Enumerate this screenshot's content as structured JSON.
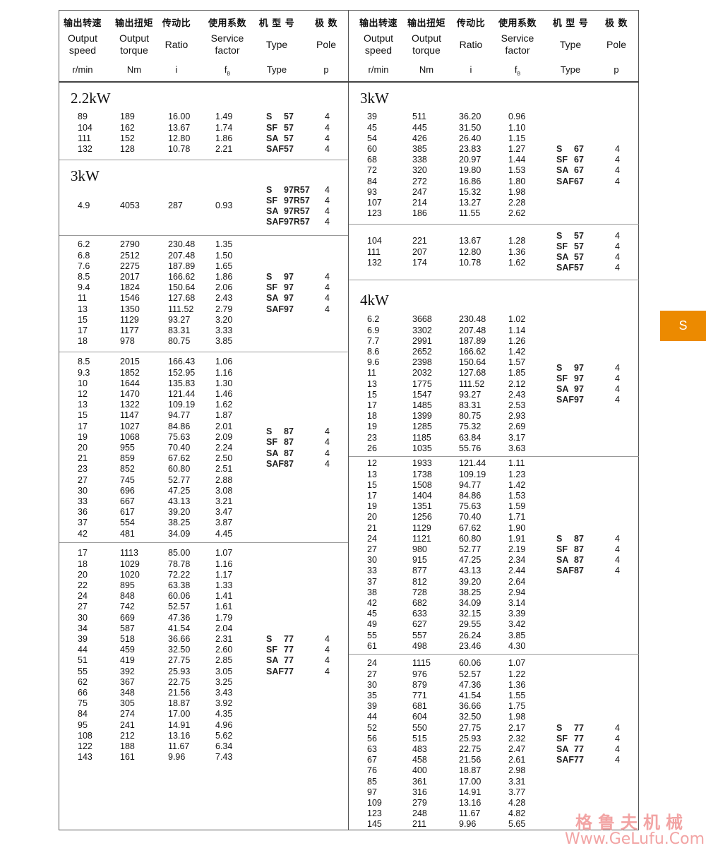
{
  "header": {
    "columns": [
      {
        "zh": "输出转速",
        "en": "Output speed",
        "en1": "Output",
        "en2": "speed",
        "unit": "r/min"
      },
      {
        "zh": "输出扭矩",
        "en": "Output torque",
        "en1": "Output",
        "en2": "torque",
        "unit": "Nm"
      },
      {
        "zh": "传动比",
        "en": "Ratio",
        "unit": "i"
      },
      {
        "zh": "使用系数",
        "en": "Service factor",
        "en1": "Service",
        "en2": "factor",
        "unit": "f",
        "unit_sub": "B"
      },
      {
        "zh": "机 型 号",
        "en": "Type",
        "unit": "Type"
      },
      {
        "zh": "极 数",
        "en": "Pole",
        "unit": "p"
      }
    ]
  },
  "left": [
    {
      "power": "2.2kW",
      "types": [
        [
          "S",
          "57"
        ],
        [
          "SF",
          "57"
        ],
        [
          "SA",
          "57"
        ],
        [
          "SAF",
          "57"
        ]
      ],
      "pole": "4",
      "rows": [
        [
          "89",
          "189",
          "16.00",
          "1.49"
        ],
        [
          "104",
          "162",
          "13.67",
          "1.74"
        ],
        [
          "111",
          "152",
          "12.80",
          "1.86"
        ],
        [
          "132",
          "128",
          "10.78",
          "2.21"
        ]
      ]
    },
    {
      "power": "3kW",
      "types": [
        [
          "S",
          "97R57"
        ],
        [
          "SF",
          "97R57"
        ],
        [
          "SA",
          "97R57"
        ],
        [
          "SAF",
          "97R57"
        ]
      ],
      "pole": "4",
      "rows": [
        [
          "4.9",
          "4053",
          "287",
          "0.93"
        ]
      ]
    },
    {
      "types": [
        [
          "S",
          "97"
        ],
        [
          "SF",
          "97"
        ],
        [
          "SA",
          "97"
        ],
        [
          "SAF",
          "97"
        ]
      ],
      "pole": "4",
      "rows": [
        [
          "6.2",
          "2790",
          "230.48",
          "1.35"
        ],
        [
          "6.8",
          "2512",
          "207.48",
          "1.50"
        ],
        [
          "7.6",
          "2275",
          "187.89",
          "1.65"
        ],
        [
          "8.5",
          "2017",
          "166.62",
          "1.86"
        ],
        [
          "9.4",
          "1824",
          "150.64",
          "2.06"
        ],
        [
          "11",
          "1546",
          "127.68",
          "2.43"
        ],
        [
          "13",
          "1350",
          "111.52",
          "2.79"
        ],
        [
          "15",
          "1129",
          "93.27",
          "3.20"
        ],
        [
          "17",
          "1177",
          "83.31",
          "3.33"
        ],
        [
          "18",
          "978",
          "80.75",
          "3.85"
        ]
      ]
    },
    {
      "types": [
        [
          "S",
          "87"
        ],
        [
          "SF",
          "87"
        ],
        [
          "SA",
          "87"
        ],
        [
          "SAF",
          "87"
        ]
      ],
      "pole": "4",
      "rows": [
        [
          "8.5",
          "2015",
          "166.43",
          "1.06"
        ],
        [
          "9.3",
          "1852",
          "152.95",
          "1.16"
        ],
        [
          "10",
          "1644",
          "135.83",
          "1.30"
        ],
        [
          "12",
          "1470",
          "121.44",
          "1.46"
        ],
        [
          "13",
          "1322",
          "109.19",
          "1.62"
        ],
        [
          "15",
          "1147",
          "94.77",
          "1.87"
        ],
        [
          "17",
          "1027",
          "84.86",
          "2.01"
        ],
        [
          "19",
          "1068",
          "75.63",
          "2.09"
        ],
        [
          "20",
          "955",
          "70.40",
          "2.24"
        ],
        [
          "21",
          "859",
          "67.62",
          "2.50"
        ],
        [
          "23",
          "852",
          "60.80",
          "2.51"
        ],
        [
          "27",
          "745",
          "52.77",
          "2.88"
        ],
        [
          "30",
          "696",
          "47.25",
          "3.08"
        ],
        [
          "33",
          "667",
          "43.13",
          "3.21"
        ],
        [
          "36",
          "617",
          "39.20",
          "3.47"
        ],
        [
          "37",
          "554",
          "38.25",
          "3.87"
        ],
        [
          "42",
          "481",
          "34.09",
          "4.45"
        ]
      ]
    },
    {
      "types": [
        [
          "S",
          "77"
        ],
        [
          "SF",
          "77"
        ],
        [
          "SA",
          "77"
        ],
        [
          "SAF",
          "77"
        ]
      ],
      "pole": "4",
      "rows": [
        [
          "17",
          "1113",
          "85.00",
          "1.07"
        ],
        [
          "18",
          "1029",
          "78.78",
          "1.16"
        ],
        [
          "20",
          "1020",
          "72.22",
          "1.17"
        ],
        [
          "22",
          "895",
          "63.38",
          "1.33"
        ],
        [
          "24",
          "848",
          "60.06",
          "1.41"
        ],
        [
          "27",
          "742",
          "52.57",
          "1.61"
        ],
        [
          "30",
          "669",
          "47.36",
          "1.79"
        ],
        [
          "34",
          "587",
          "41.54",
          "2.04"
        ],
        [
          "39",
          "518",
          "36.66",
          "2.31"
        ],
        [
          "44",
          "459",
          "32.50",
          "2.60"
        ],
        [
          "51",
          "419",
          "27.75",
          "2.85"
        ],
        [
          "55",
          "392",
          "25.93",
          "3.05"
        ],
        [
          "62",
          "367",
          "22.75",
          "3.25"
        ],
        [
          "66",
          "348",
          "21.56",
          "3.43"
        ],
        [
          "75",
          "305",
          "18.87",
          "3.92"
        ],
        [
          "84",
          "274",
          "17.00",
          "4.35"
        ],
        [
          "95",
          "241",
          "14.91",
          "4.96"
        ],
        [
          "108",
          "212",
          "13.16",
          "5.62"
        ],
        [
          "122",
          "188",
          "11.67",
          "6.34"
        ],
        [
          "143",
          "161",
          "9.96",
          "7.43"
        ]
      ]
    }
  ],
  "right": [
    {
      "power": "3kW",
      "types": [
        [
          "S",
          "67"
        ],
        [
          "SF",
          "67"
        ],
        [
          "SA",
          "67"
        ],
        [
          "SAF",
          "67"
        ]
      ],
      "pole": "4",
      "rows": [
        [
          "39",
          "511",
          "36.20",
          "0.96"
        ],
        [
          "45",
          "445",
          "31.50",
          "1.10"
        ],
        [
          "54",
          "426",
          "26.40",
          "1.15"
        ],
        [
          "60",
          "385",
          "23.83",
          "1.27"
        ],
        [
          "68",
          "338",
          "20.97",
          "1.44"
        ],
        [
          "72",
          "320",
          "19.80",
          "1.53"
        ],
        [
          "84",
          "272",
          "16.86",
          "1.80"
        ],
        [
          "93",
          "247",
          "15.32",
          "1.98"
        ],
        [
          "107",
          "214",
          "13.27",
          "2.28"
        ],
        [
          "123",
          "186",
          "11.55",
          "2.62"
        ]
      ]
    },
    {
      "types": [
        [
          "S",
          "57"
        ],
        [
          "SF",
          "57"
        ],
        [
          "SA",
          "57"
        ],
        [
          "SAF",
          "57"
        ]
      ],
      "pole": "4",
      "rows": [
        [
          "104",
          "221",
          "13.67",
          "1.28"
        ],
        [
          "111",
          "207",
          "12.80",
          "1.36"
        ],
        [
          "132",
          "174",
          "10.78",
          "1.62"
        ]
      ]
    },
    {
      "power": "4kW",
      "types": [
        [
          "S",
          "97"
        ],
        [
          "SF",
          "97"
        ],
        [
          "SA",
          "97"
        ],
        [
          "SAF",
          "97"
        ]
      ],
      "pole": "4",
      "rows": [
        [
          "6.2",
          "3668",
          "230.48",
          "1.02"
        ],
        [
          "6.9",
          "3302",
          "207.48",
          "1.14"
        ],
        [
          "7.7",
          "2991",
          "187.89",
          "1.26"
        ],
        [
          "8.6",
          "2652",
          "166.62",
          "1.42"
        ],
        [
          "9.6",
          "2398",
          "150.64",
          "1.57"
        ],
        [
          "11",
          "2032",
          "127.68",
          "1.85"
        ],
        [
          "13",
          "1775",
          "111.52",
          "2.12"
        ],
        [
          "15",
          "1547",
          "93.27",
          "2.43"
        ],
        [
          "17",
          "1485",
          "83.31",
          "2.53"
        ],
        [
          "18",
          "1399",
          "80.75",
          "2.93"
        ],
        [
          "19",
          "1285",
          "75.32",
          "2.69"
        ],
        [
          "23",
          "1185",
          "63.84",
          "3.17"
        ],
        [
          "26",
          "1035",
          "55.76",
          "3.63"
        ]
      ]
    },
    {
      "types": [
        [
          "S",
          "87"
        ],
        [
          "SF",
          "87"
        ],
        [
          "SA",
          "87"
        ],
        [
          "SAF",
          "87"
        ]
      ],
      "pole": "4",
      "rows": [
        [
          "12",
          "1933",
          "121.44",
          "1.11"
        ],
        [
          "13",
          "1738",
          "109.19",
          "1.23"
        ],
        [
          "15",
          "1508",
          "94.77",
          "1.42"
        ],
        [
          "17",
          "1404",
          "84.86",
          "1.53"
        ],
        [
          "19",
          "1351",
          "75.63",
          "1.59"
        ],
        [
          "20",
          "1256",
          "70.40",
          "1.71"
        ],
        [
          "21",
          "1129",
          "67.62",
          "1.90"
        ],
        [
          "24",
          "1121",
          "60.80",
          "1.91"
        ],
        [
          "27",
          "980",
          "52.77",
          "2.19"
        ],
        [
          "30",
          "915",
          "47.25",
          "2.34"
        ],
        [
          "33",
          "877",
          "43.13",
          "2.44"
        ],
        [
          "37",
          "812",
          "39.20",
          "2.64"
        ],
        [
          "38",
          "728",
          "38.25",
          "2.94"
        ],
        [
          "42",
          "682",
          "34.09",
          "3.14"
        ],
        [
          "45",
          "633",
          "32.15",
          "3.39"
        ],
        [
          "49",
          "627",
          "29.55",
          "3.42"
        ],
        [
          "55",
          "557",
          "26.24",
          "3.85"
        ],
        [
          "61",
          "498",
          "23.46",
          "4.30"
        ]
      ]
    },
    {
      "types": [
        [
          "S",
          "77"
        ],
        [
          "SF",
          "77"
        ],
        [
          "SA",
          "77"
        ],
        [
          "SAF",
          "77"
        ]
      ],
      "pole": "4",
      "rows": [
        [
          "24",
          "1115",
          "60.06",
          "1.07"
        ],
        [
          "27",
          "976",
          "52.57",
          "1.22"
        ],
        [
          "30",
          "879",
          "47.36",
          "1.36"
        ],
        [
          "35",
          "771",
          "41.54",
          "1.55"
        ],
        [
          "39",
          "681",
          "36.66",
          "1.75"
        ],
        [
          "44",
          "604",
          "32.50",
          "1.98"
        ],
        [
          "52",
          "550",
          "27.75",
          "2.17"
        ],
        [
          "56",
          "515",
          "25.93",
          "2.32"
        ],
        [
          "63",
          "483",
          "22.75",
          "2.47"
        ],
        [
          "67",
          "458",
          "21.56",
          "2.61"
        ],
        [
          "76",
          "400",
          "18.87",
          "2.98"
        ],
        [
          "85",
          "361",
          "17.00",
          "3.31"
        ],
        [
          "97",
          "316",
          "14.91",
          "3.77"
        ],
        [
          "109",
          "279",
          "13.16",
          "4.28"
        ],
        [
          "123",
          "248",
          "11.67",
          "4.82"
        ],
        [
          "145",
          "211",
          "9.96",
          "5.65"
        ]
      ]
    }
  ],
  "side_tab": {
    "label": "S",
    "color": "#ec8a00"
  },
  "watermark": {
    "zh": "格鲁夫机械",
    "url": "Www.GeLufu.Com",
    "color": "#f2a4a4"
  }
}
